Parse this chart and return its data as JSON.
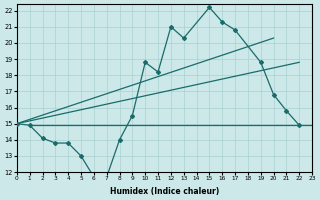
{
  "background_color": "#cce8e8",
  "grid_color": "#aad0d0",
  "line_color": "#1a6b6b",
  "xlim": [
    0,
    23
  ],
  "ylim": [
    12,
    22.4
  ],
  "xticks": [
    0,
    1,
    2,
    3,
    4,
    5,
    6,
    7,
    8,
    9,
    10,
    11,
    12,
    13,
    14,
    15,
    16,
    17,
    18,
    19,
    20,
    21,
    22,
    23
  ],
  "yticks": [
    12,
    13,
    14,
    15,
    16,
    17,
    18,
    19,
    20,
    21,
    22
  ],
  "xlabel": "Humidex (Indice chaleur)",
  "main_x": [
    0,
    1,
    2,
    3,
    4,
    5,
    6,
    7,
    8,
    9,
    10,
    11,
    12,
    13,
    15,
    16,
    17,
    19,
    20,
    21,
    22
  ],
  "main_y": [
    15.0,
    14.9,
    14.1,
    13.8,
    13.8,
    13.0,
    11.7,
    11.7,
    14.0,
    15.5,
    18.8,
    18.2,
    21.0,
    20.3,
    22.2,
    21.3,
    20.8,
    18.8,
    16.8,
    15.8,
    14.9
  ],
  "upper_line_x": [
    0,
    20
  ],
  "upper_line_y": [
    15.0,
    20.3
  ],
  "mid_line_x": [
    0,
    22
  ],
  "mid_line_y": [
    15.0,
    18.8
  ],
  "flat_line_x": [
    1,
    23
  ],
  "flat_line_y": [
    14.9,
    14.9
  ]
}
